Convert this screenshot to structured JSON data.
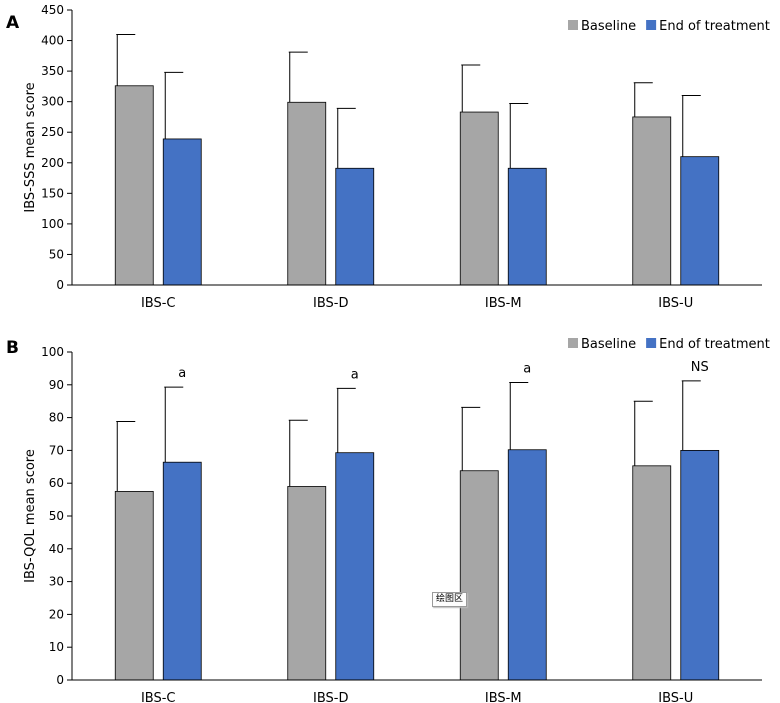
{
  "tooltip": "绘图区",
  "chart_data": [
    {
      "type": "bar",
      "panel_label": "A",
      "categories": [
        "IBS-C",
        "IBS-D",
        "IBS-M",
        "IBS-U"
      ],
      "series": [
        {
          "name": "Baseline",
          "color": "#a6a6a6",
          "values": [
            326,
            299,
            283,
            275
          ],
          "error": [
            84,
            82,
            77,
            56
          ]
        },
        {
          "name": "End of treatment",
          "color": "#4472c4",
          "values": [
            239,
            191,
            191,
            210
          ],
          "error": [
            109,
            98,
            106,
            100
          ]
        }
      ],
      "ylabel": "IBS-SSS mean score",
      "ylim": [
        0,
        450
      ],
      "yticks": [
        0,
        50,
        100,
        150,
        200,
        250,
        300,
        350,
        400,
        450
      ],
      "legend_position": "top-right",
      "annotations": []
    },
    {
      "type": "bar",
      "panel_label": "B",
      "categories": [
        "IBS-C",
        "IBS-D",
        "IBS-M",
        "IBS-U"
      ],
      "series": [
        {
          "name": "Baseline",
          "color": "#a6a6a6",
          "values": [
            57.5,
            59,
            63.8,
            65.3
          ],
          "error": [
            21.3,
            20.2,
            19.3,
            19.7
          ]
        },
        {
          "name": "End of treatment",
          "color": "#4472c4",
          "values": [
            66.4,
            69.3,
            70.2,
            70
          ],
          "error": [
            22.9,
            19.6,
            20.5,
            21.2
          ]
        }
      ],
      "ylabel": "IBS-QOL mean score",
      "ylim": [
        0,
        100
      ],
      "yticks": [
        0,
        10,
        20,
        30,
        40,
        50,
        60,
        70,
        80,
        90,
        100
      ],
      "legend_position": "top-right",
      "annotations": [
        "a",
        "a",
        "a",
        "NS"
      ]
    }
  ]
}
